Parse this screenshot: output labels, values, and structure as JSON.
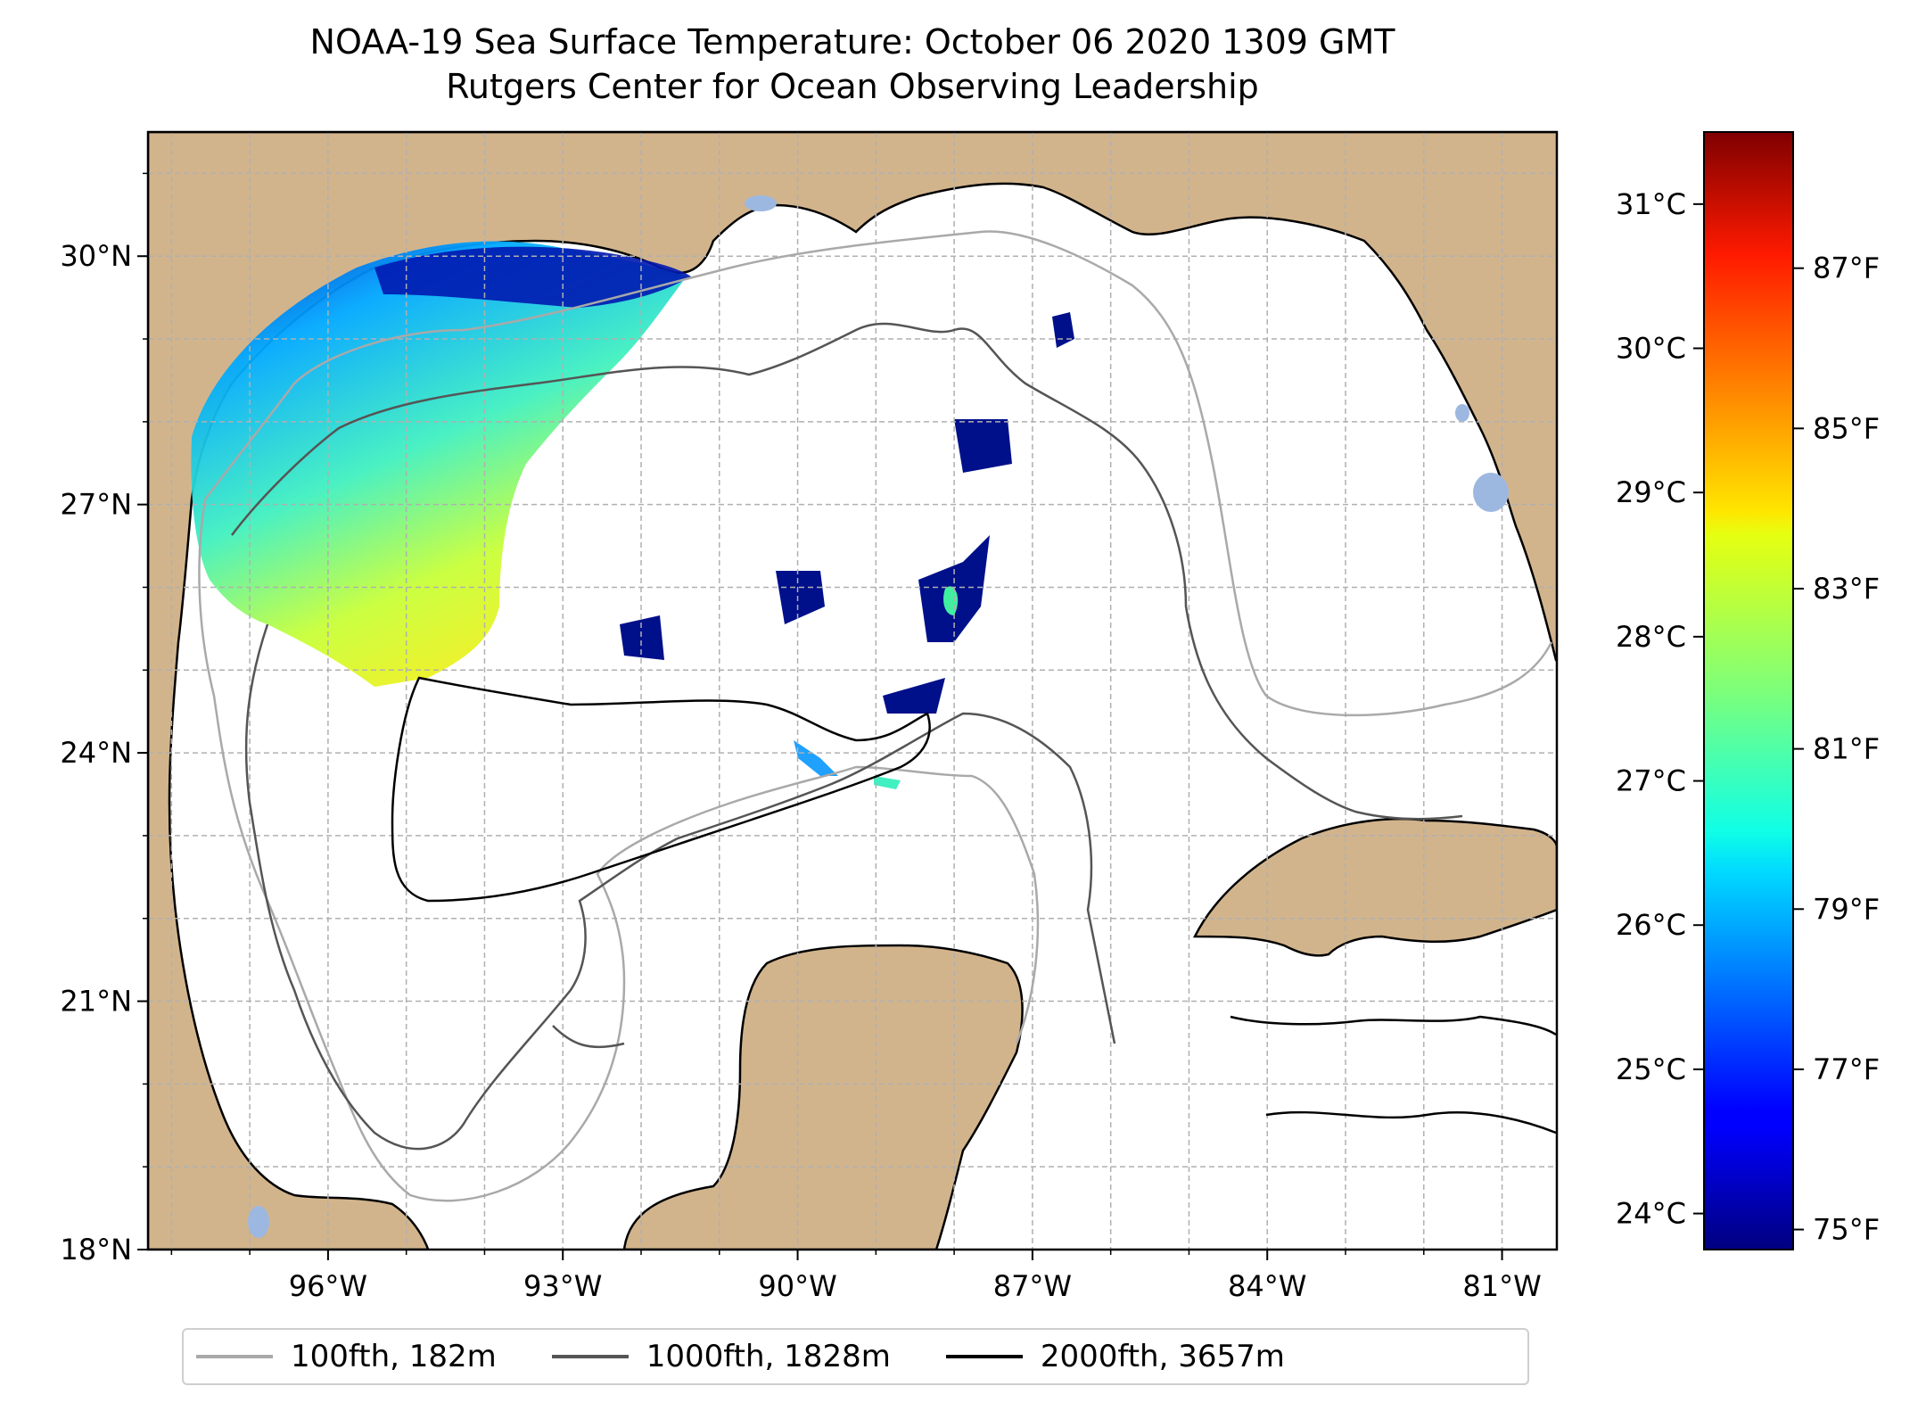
{
  "title": {
    "line1": "NOAA-19 Sea Surface Temperature: October 06 2020 1309 GMT",
    "line2": "Rutgers Center for Ocean Observing Leadership"
  },
  "map": {
    "lat_range": [
      18,
      31.5
    ],
    "lon_range": [
      -98.3,
      -80.3
    ],
    "lat_ticks": [
      "30°N",
      "27°N",
      "24°N",
      "21°N",
      "18°N"
    ],
    "lon_ticks": [
      "96°W",
      "93°W",
      "90°W",
      "87°W",
      "84°W",
      "81°W"
    ],
    "grid": "dashed",
    "land_color": "#D2B48C",
    "ocean_color": "#FFFFFF",
    "lake_color": "#9DB8E0"
  },
  "colorbar": {
    "colormap": "jet",
    "celsius_ticks": [
      "31°C",
      "30°C",
      "29°C",
      "28°C",
      "27°C",
      "26°C",
      "25°C",
      "24°C"
    ],
    "fahrenheit_ticks": [
      "87°F",
      "85°F",
      "83°F",
      "81°F",
      "79°F",
      "77°F",
      "75°F"
    ]
  },
  "legend": {
    "items": [
      {
        "label": "100fth, 182m",
        "color": "#A9A9A9"
      },
      {
        "label": "1000fth, 1828m",
        "color": "#555555"
      },
      {
        "label": "2000fth, 3657m",
        "color": "#000000"
      }
    ]
  }
}
